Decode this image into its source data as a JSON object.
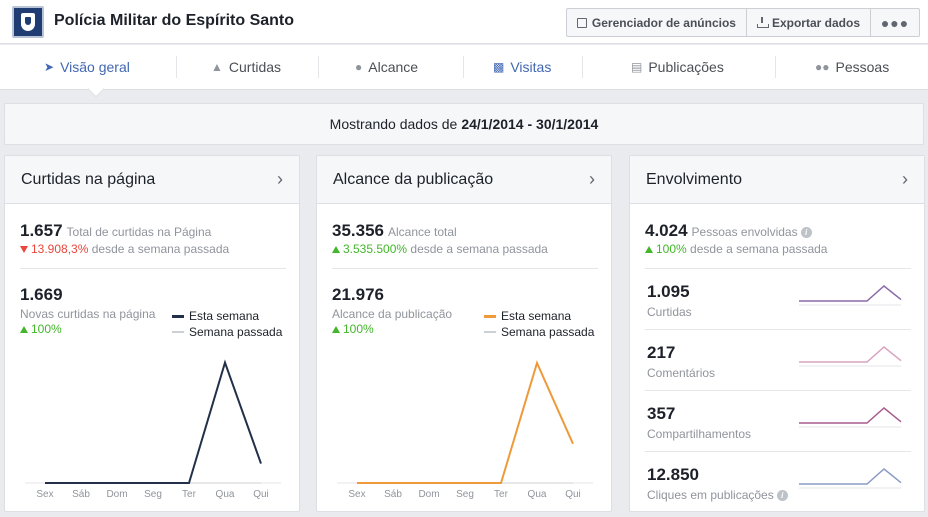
{
  "header": {
    "title": "Polícia Militar do Espírito Santo",
    "buttons": {
      "ads_manager": "Gerenciador de anúncios",
      "export": "Exportar dados",
      "more": "●●●"
    }
  },
  "tabs": [
    {
      "label": "Visão geral",
      "icon": "megaphone-icon",
      "active": true
    },
    {
      "label": "Curtidas",
      "icon": "thumb-icon"
    },
    {
      "label": "Alcance",
      "icon": "people-icon"
    },
    {
      "label": "Visitas",
      "icon": "bar-chart-icon"
    },
    {
      "label": "Publicações",
      "icon": "posts-icon"
    },
    {
      "label": "Pessoas",
      "icon": "group-icon"
    }
  ],
  "date_range": {
    "prefix": "Mostrando dados de",
    "range": "24/1/2014 - 30/1/2014"
  },
  "likes_card": {
    "title": "Curtidas na página",
    "total_value": "1.657",
    "total_desc": "Total de curtidas na Página",
    "total_change": "13.908,3%",
    "total_change_suffix": "desde a semana passada",
    "new_value": "1.669",
    "new_desc": "Novas curtidas na página",
    "new_change": "100%",
    "legend_this": "Esta semana",
    "legend_past": "Semana passada"
  },
  "reach_card": {
    "title": "Alcance da publicação",
    "total_value": "35.356",
    "total_desc": "Alcance total",
    "total_change": "3.535.500%",
    "total_change_suffix": "desde a semana passada",
    "new_value": "21.976",
    "new_desc": "Alcance da publicação",
    "new_change": "100%",
    "legend_this": "Esta semana",
    "legend_past": "Semana passada"
  },
  "engagement_card": {
    "title": "Envolvimento",
    "total_value": "4.024",
    "total_desc": "Pessoas envolvidas",
    "total_change": "100%",
    "total_change_suffix": "desde a semana passada",
    "items": [
      {
        "value": "1.095",
        "label": "Curtidas",
        "color": "#8b6aa8"
      },
      {
        "value": "217",
        "label": "Comentários",
        "color": "#d9a3bf"
      },
      {
        "value": "357",
        "label": "Compartilhamentos",
        "color": "#a65c8c"
      },
      {
        "value": "12.850",
        "label": "Cliques em publicações",
        "color": "#8c9bc6"
      }
    ]
  },
  "colors": {
    "likes_line": "#22304a",
    "reach_line": "#ee9a3a",
    "past_line": "#ccd0d5",
    "accent": "#4267b2"
  },
  "chart_data": [
    {
      "type": "line",
      "x": [
        "Sex",
        "Sáb",
        "Dom",
        "Seg",
        "Ter",
        "Qua",
        "Qui"
      ],
      "series": [
        {
          "name": "Esta semana",
          "values": [
            0,
            0,
            0,
            0,
            0,
            1550,
            250
          ]
        },
        {
          "name": "Semana passada",
          "values": [
            0,
            0,
            0,
            0,
            0,
            0,
            0
          ]
        }
      ],
      "ylim": [
        0,
        1700
      ]
    },
    {
      "type": "line",
      "x": [
        "Sex",
        "Sáb",
        "Dom",
        "Seg",
        "Ter",
        "Qua",
        "Qui"
      ],
      "series": [
        {
          "name": "Esta semana",
          "values": [
            0,
            0,
            0,
            0,
            0,
            15000,
            4900
          ]
        },
        {
          "name": "Semana passada",
          "values": [
            0,
            0,
            0,
            0,
            0,
            0,
            0
          ]
        }
      ],
      "ylim": [
        0,
        16500
      ]
    },
    {
      "type": "line",
      "x": [
        "Sex",
        "Sáb",
        "Dom",
        "Seg",
        "Ter",
        "Qua",
        "Qui"
      ],
      "series": [
        {
          "name": "Curtidas",
          "values": [
            0,
            0,
            0,
            0,
            0,
            1000,
            95
          ]
        }
      ]
    },
    {
      "type": "line",
      "x": [
        "Sex",
        "Sáb",
        "Dom",
        "Seg",
        "Ter",
        "Qua",
        "Qui"
      ],
      "series": [
        {
          "name": "Comentários",
          "values": [
            0,
            0,
            0,
            0,
            0,
            200,
            17
          ]
        }
      ]
    },
    {
      "type": "line",
      "x": [
        "Sex",
        "Sáb",
        "Dom",
        "Seg",
        "Ter",
        "Qua",
        "Qui"
      ],
      "series": [
        {
          "name": "Compartilhamentos",
          "values": [
            0,
            0,
            0,
            0,
            0,
            330,
            27
          ]
        }
      ]
    },
    {
      "type": "line",
      "x": [
        "Sex",
        "Sáb",
        "Dom",
        "Seg",
        "Ter",
        "Qua",
        "Qui"
      ],
      "series": [
        {
          "name": "Cliques em publicações",
          "values": [
            0,
            0,
            0,
            0,
            0,
            11800,
            1050
          ]
        }
      ]
    }
  ]
}
